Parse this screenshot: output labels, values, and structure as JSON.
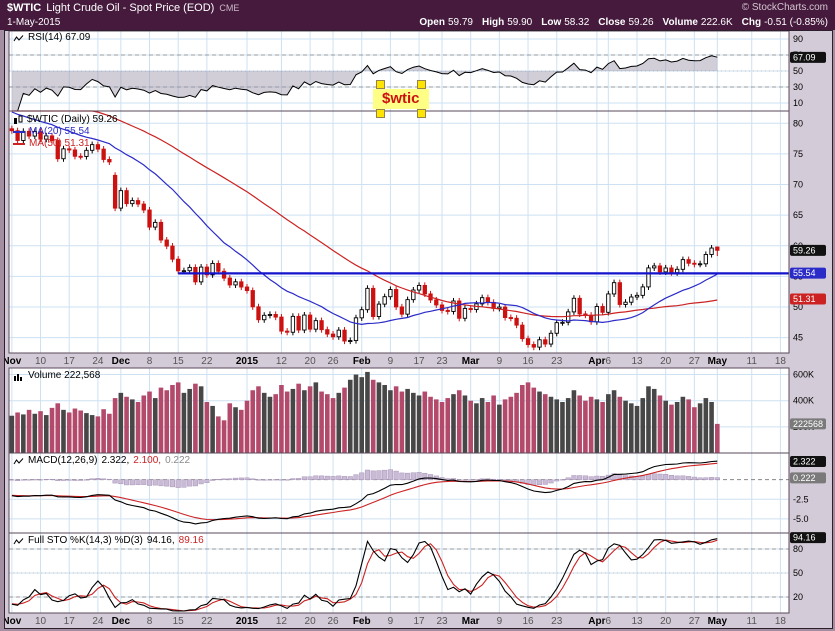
{
  "header": {
    "symbol": "$WTIC",
    "title": "Light Crude Oil - Spot Price (EOD)",
    "exchange": "CME",
    "copyright": "© StockCharts.com",
    "date": "1-May-2015",
    "quote": [
      {
        "label": "Open",
        "value": "59.79"
      },
      {
        "label": "High",
        "value": "59.90"
      },
      {
        "label": "Low",
        "value": "58.32"
      },
      {
        "label": "Close",
        "value": "59.26"
      },
      {
        "label": "Volume",
        "value": "222.6K"
      },
      {
        "label": "Chg",
        "value": "-0.51 (-0.85%)"
      }
    ]
  },
  "legends": {
    "rsi": "RSI(14) 67.09",
    "price_main": "$WTIC (Daily) 59.26",
    "ma20": "MA(20) 55.54",
    "ma50": "MA(50) 51.31",
    "volume": "Volume 222,568",
    "macd_label": "MACD(12,26,9)",
    "macd_values": [
      "2.322,",
      "2.100,",
      "0.222"
    ],
    "sto_label": "Full STO %K(14,3) %D(3)",
    "sto_values": [
      "94.16,",
      "89.16"
    ]
  },
  "annotation": {
    "text": "$wtic",
    "text_color": "#cc1111",
    "highlight_color": "#ffff85",
    "handle_color": "#ffe400"
  },
  "chart_data": {
    "type": "multi-panel-stock-chart",
    "slots": 136,
    "x_ticks": [
      {
        "i": 0,
        "label": "Nov",
        "bold": true
      },
      {
        "i": 5,
        "label": "10"
      },
      {
        "i": 10,
        "label": "17"
      },
      {
        "i": 15,
        "label": "24"
      },
      {
        "i": 19,
        "label": "Dec",
        "bold": true
      },
      {
        "i": 24,
        "label": "8"
      },
      {
        "i": 29,
        "label": "15"
      },
      {
        "i": 34,
        "label": "22"
      },
      {
        "i": 41,
        "label": "2015",
        "bold": true
      },
      {
        "i": 47,
        "label": "12"
      },
      {
        "i": 52,
        "label": "20"
      },
      {
        "i": 56,
        "label": "26"
      },
      {
        "i": 61,
        "label": "Feb",
        "bold": true
      },
      {
        "i": 66,
        "label": "9"
      },
      {
        "i": 71,
        "label": "17"
      },
      {
        "i": 75,
        "label": "23"
      },
      {
        "i": 80,
        "label": "Mar",
        "bold": true
      },
      {
        "i": 85,
        "label": "9"
      },
      {
        "i": 90,
        "label": "16"
      },
      {
        "i": 95,
        "label": "23"
      },
      {
        "i": 102,
        "label": "Apr",
        "bold": true
      },
      {
        "i": 104,
        "label": "6"
      },
      {
        "i": 109,
        "label": "13"
      },
      {
        "i": 114,
        "label": "20"
      },
      {
        "i": 119,
        "label": "27"
      },
      {
        "i": 123,
        "label": "May",
        "bold": true
      },
      {
        "i": 129,
        "label": "11"
      },
      {
        "i": 134,
        "label": "18"
      }
    ],
    "rsi": {
      "type": "line",
      "label": "RSI(14)",
      "last": 67.09,
      "badge": "67.09",
      "ylim": [
        0,
        100
      ],
      "levels": [
        70,
        50,
        30
      ],
      "right_ticks": [
        90,
        70,
        50,
        30,
        10
      ],
      "derived": "RSI(14) of close series"
    },
    "price": {
      "type": "candlestick",
      "label": "$WTIC (Daily)",
      "last": 59.26,
      "ylim": [
        42.5,
        82
      ],
      "right_ticks": [
        80,
        75,
        70,
        65,
        60,
        55,
        50,
        45
      ],
      "badges": [
        {
          "value": 59.26,
          "text": "59.26",
          "color": "#111111"
        },
        {
          "value": 55.54,
          "text": "55.54",
          "color": "#2b2bc8"
        },
        {
          "value": 51.31,
          "text": "51.31",
          "color": "#cc2222"
        }
      ],
      "overlays": [
        {
          "name": "MA(20)",
          "period": 20,
          "last": 55.54,
          "color": "#2b2bc8"
        },
        {
          "name": "MA(50)",
          "period": 50,
          "last": 51.31,
          "color": "#cc2222"
        }
      ],
      "annotation_hline": {
        "value": 55.5,
        "start_index": 29,
        "color": "#1414cc"
      },
      "open": [
        79.1,
        78.78,
        77.19,
        78.68,
        77.91,
        78.65,
        77.4,
        77.94,
        77.18,
        74.21,
        75.82,
        75.64,
        74.61,
        74.58,
        75.58,
        76.51,
        75.78,
        74.09,
        71.5,
        66.15,
        69.0,
        66.88,
        67.38,
        66.81,
        65.84,
        63.05,
        63.82,
        60.94,
        59.95,
        57.81,
        55.91,
        55.93,
        56.47,
        54.11,
        56.52,
        55.26,
        57.12,
        55.84,
        54.73,
        53.61,
        54.12,
        53.27,
        52.69,
        50.04,
        47.93,
        48.65,
        48.79,
        48.36,
        46.07,
        45.89,
        48.48,
        46.25,
        48.69,
        46.39,
        47.78,
        46.31,
        45.59,
        45.15,
        46.23,
        44.45,
        44.53,
        48.24,
        49.57,
        53.05,
        48.45,
        50.48,
        51.69,
        52.86,
        50.02,
        48.84,
        51.21,
        52.78,
        53.53,
        52.14,
        51.16,
        50.34,
        49.45,
        49.28,
        50.99,
        48.17,
        49.76,
        49.59,
        50.52,
        51.53,
        50.76,
        49.78,
        50.0,
        48.29,
        48.17,
        47.05,
        44.84,
        43.88,
        43.46,
        44.66,
        43.96,
        45.72,
        47.45,
        47.51,
        49.21,
        51.43,
        48.87,
        48.68,
        47.6,
        50.09,
        49.14,
        52.14,
        53.98,
        50.42,
        50.79,
        51.64,
        51.91,
        53.29,
        56.39,
        56.71,
        55.74,
        56.38,
        55.61,
        56.16,
        57.74,
        57.15,
        56.99,
        57.06,
        58.58,
        59.79
      ],
      "high": [
        79.6,
        79.28,
        79.18,
        79.18,
        79.15,
        79.15,
        78.44,
        78.44,
        77.68,
        76.32,
        76.32,
        76.14,
        75.11,
        76.08,
        77.01,
        77.01,
        76.28,
        74.59,
        72.0,
        69.5,
        69.5,
        67.88,
        67.88,
        67.31,
        66.34,
        64.32,
        64.32,
        61.44,
        60.45,
        58.31,
        56.43,
        56.97,
        56.97,
        57.02,
        57.02,
        57.62,
        57.62,
        56.34,
        55.23,
        54.62,
        54.62,
        53.77,
        53.19,
        50.54,
        49.15,
        49.29,
        49.29,
        48.86,
        46.57,
        48.98,
        48.98,
        49.19,
        49.19,
        48.28,
        48.28,
        46.81,
        46.09,
        46.73,
        46.73,
        45.03,
        48.74,
        50.07,
        53.55,
        53.55,
        50.98,
        52.19,
        53.36,
        53.36,
        50.52,
        51.71,
        53.28,
        54.03,
        54.03,
        52.64,
        51.66,
        50.84,
        49.95,
        51.49,
        51.49,
        50.26,
        50.26,
        51.02,
        52.03,
        52.03,
        51.26,
        50.5,
        50.5,
        48.79,
        48.67,
        47.55,
        45.34,
        44.38,
        45.16,
        45.16,
        46.22,
        47.95,
        48.01,
        49.71,
        51.93,
        51.93,
        49.37,
        49.18,
        50.59,
        50.59,
        52.64,
        54.48,
        54.48,
        51.29,
        52.14,
        52.41,
        53.79,
        56.89,
        57.21,
        57.21,
        56.88,
        56.88,
        56.66,
        58.24,
        58.24,
        57.65,
        57.56,
        59.08,
        60.13,
        59.9
      ],
      "low": [
        78.28,
        76.69,
        76.69,
        77.41,
        77.41,
        76.9,
        76.9,
        76.68,
        73.71,
        73.71,
        75.14,
        74.11,
        74.08,
        74.08,
        75.08,
        75.28,
        73.59,
        73.19,
        65.65,
        65.65,
        66.38,
        66.38,
        66.31,
        65.34,
        62.55,
        62.55,
        60.44,
        59.45,
        57.31,
        55.41,
        55.41,
        55.43,
        53.61,
        53.61,
        54.76,
        54.76,
        55.34,
        54.23,
        53.11,
        53.11,
        52.77,
        52.19,
        49.54,
        47.43,
        47.43,
        48.15,
        47.86,
        45.57,
        45.39,
        45.39,
        45.75,
        45.75,
        45.89,
        45.89,
        45.81,
        45.09,
        44.65,
        44.65,
        43.95,
        43.95,
        44.03,
        47.74,
        49.07,
        47.95,
        47.95,
        49.98,
        51.19,
        49.52,
        48.34,
        48.34,
        50.71,
        52.28,
        51.64,
        50.66,
        49.84,
        48.95,
        48.78,
        48.78,
        47.67,
        47.67,
        49.09,
        49.09,
        50.02,
        50.26,
        49.28,
        49.28,
        47.79,
        47.67,
        46.55,
        44.34,
        43.38,
        42.96,
        42.96,
        43.46,
        43.46,
        45.22,
        46.95,
        47.01,
        48.71,
        48.37,
        48.18,
        47.1,
        47.1,
        48.64,
        48.64,
        51.64,
        49.92,
        49.92,
        50.29,
        51.14,
        51.41,
        52.79,
        55.89,
        55.24,
        55.24,
        55.11,
        55.11,
        55.66,
        56.65,
        56.49,
        56.49,
        56.56,
        58.08,
        58.32
      ],
      "close": [
        78.78,
        77.19,
        78.68,
        77.91,
        78.65,
        77.4,
        77.94,
        77.18,
        74.21,
        75.82,
        75.64,
        74.61,
        74.58,
        75.58,
        76.51,
        75.78,
        74.09,
        73.69,
        66.15,
        69.0,
        66.88,
        67.38,
        66.81,
        65.84,
        63.05,
        63.82,
        60.94,
        59.95,
        57.81,
        55.91,
        55.93,
        56.47,
        54.11,
        56.52,
        55.26,
        57.12,
        55.84,
        54.73,
        53.61,
        54.12,
        53.27,
        52.69,
        50.04,
        47.93,
        48.65,
        48.79,
        48.36,
        46.07,
        45.89,
        48.48,
        46.25,
        48.69,
        46.39,
        47.78,
        46.31,
        45.59,
        45.15,
        46.23,
        44.45,
        44.53,
        48.24,
        49.57,
        53.05,
        48.45,
        50.48,
        51.69,
        52.86,
        50.02,
        48.84,
        51.21,
        52.78,
        53.53,
        52.14,
        51.16,
        50.34,
        49.45,
        49.28,
        50.99,
        48.17,
        49.76,
        49.59,
        50.52,
        51.53,
        50.76,
        49.78,
        50.0,
        48.29,
        48.17,
        47.05,
        44.84,
        43.88,
        43.46,
        44.66,
        43.96,
        45.72,
        47.45,
        47.51,
        49.21,
        51.43,
        48.87,
        48.68,
        47.6,
        50.09,
        49.14,
        52.14,
        53.98,
        50.42,
        50.79,
        51.64,
        51.91,
        53.29,
        56.39,
        56.71,
        55.74,
        56.38,
        55.61,
        56.16,
        57.74,
        57.15,
        56.99,
        57.06,
        58.58,
        59.63,
        59.26
      ]
    },
    "volume": {
      "type": "bar",
      "label": "Volume",
      "last": 222568,
      "last_k": 222.568,
      "badge": "222568",
      "ylim_k": [
        0,
        650
      ],
      "right_ticks": [
        {
          "v": 600,
          "label": "600K"
        },
        {
          "v": 400,
          "label": "400K"
        },
        {
          "v": 200,
          "label": "200K"
        }
      ],
      "values_k": [
        285,
        310,
        295,
        330,
        300,
        320,
        290,
        345,
        380,
        330,
        310,
        340,
        325,
        305,
        290,
        280,
        335,
        300,
        420,
        460,
        430,
        410,
        390,
        440,
        470,
        420,
        500,
        480,
        520,
        540,
        460,
        490,
        530,
        510,
        390,
        360,
        280,
        250,
        380,
        350,
        330,
        400,
        480,
        510,
        460,
        430,
        450,
        520,
        470,
        490,
        530,
        480,
        510,
        540,
        470,
        450,
        420,
        460,
        500,
        560,
        600,
        580,
        620,
        560,
        540,
        520,
        480,
        510,
        470,
        490,
        460,
        440,
        470,
        430,
        410,
        390,
        420,
        450,
        480,
        440,
        400,
        380,
        420,
        390,
        440,
        370,
        410,
        430,
        460,
        520,
        540,
        500,
        470,
        450,
        430,
        410,
        390,
        420,
        480,
        440,
        400,
        430,
        410,
        390,
        450,
        480,
        430,
        400,
        380,
        360,
        420,
        510,
        490,
        440,
        400,
        370,
        390,
        430,
        410,
        350,
        380,
        420,
        390,
        222.568
      ]
    },
    "macd": {
      "type": "line",
      "label": "MACD(12,26,9)",
      "values": [
        2.322,
        2.1,
        0.222
      ],
      "ylim": [
        -6.8,
        3.4
      ],
      "right_ticks": [
        {
          "v": -2.5,
          "label": "-2.5"
        },
        {
          "v": -5,
          "label": "-5.0"
        }
      ],
      "badges": [
        {
          "value": 2.322,
          "text": "2.322",
          "color": "#111111"
        },
        {
          "value": 0.222,
          "text": "0.222",
          "color": "#7a7a7a"
        }
      ],
      "derived": "EMA12-EMA26 with EMA9 signal and histogram"
    },
    "stoch": {
      "type": "line",
      "label": "Full STO %K(14,3) %D(3)",
      "values": [
        94.16,
        89.16
      ],
      "last": 94.16,
      "badge": "94.16",
      "ylim": [
        0,
        100
      ],
      "levels": [
        80,
        50,
        20
      ],
      "right_ticks": [
        80,
        50,
        20
      ],
      "derived": "Full stochastic %K(14,3) and %D(3)"
    }
  }
}
